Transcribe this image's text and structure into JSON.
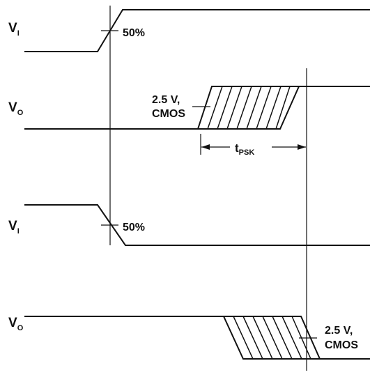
{
  "signals": {
    "vi_top": {
      "main": "V",
      "sub": "I"
    },
    "vo_top": {
      "main": "V",
      "sub": "O"
    },
    "vi_bottom": {
      "main": "V",
      "sub": "I"
    },
    "vo_bottom": {
      "main": "V",
      "sub": "O"
    }
  },
  "annotations": {
    "threshold_50_top": "50%",
    "threshold_50_bottom": "50%",
    "level_top_line1": "2.5 V,",
    "level_top_line2": "CMOS",
    "level_bottom_line1": "2.5 V,",
    "level_bottom_line2": "CMOS",
    "tpsk_main": "t",
    "tpsk_sub": "PSK"
  }
}
